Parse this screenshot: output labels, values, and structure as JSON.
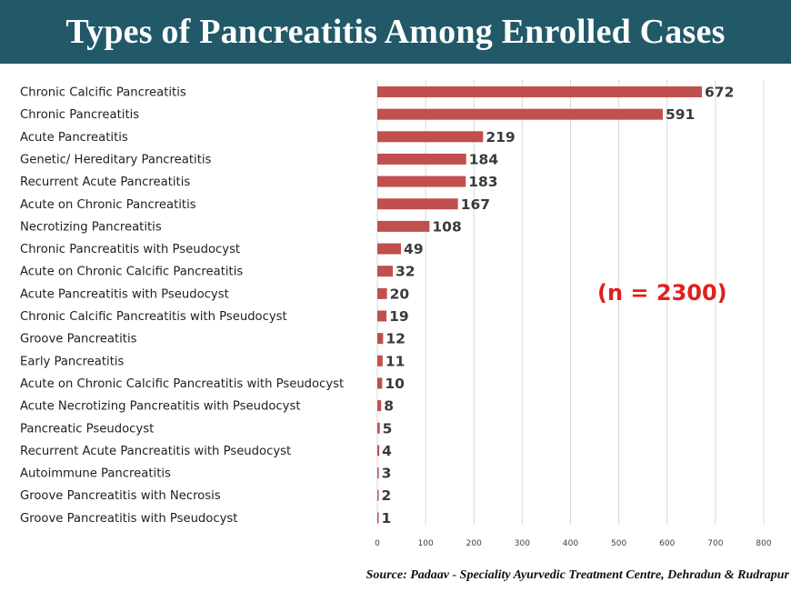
{
  "header": {
    "title": "Types of Pancreatitis Among Enrolled Cases"
  },
  "annotation": {
    "n_text": "(n = 2300)"
  },
  "footer": {
    "source": "Source: Padaav - Speciality Ayurvedic Treatment Centre, Dehradun & Rudrapur"
  },
  "colors": {
    "bar": "#c0504d",
    "title_bg": "#215968",
    "annotation": "#e02020"
  },
  "chart_data": {
    "type": "bar",
    "orientation": "horizontal",
    "title": "Types of Pancreatitis Among Enrolled Cases",
    "xlabel": "",
    "ylabel": "",
    "categories": [
      "Chronic Calcific Pancreatitis",
      "Chronic Pancreatitis",
      "Acute Pancreatitis",
      "Genetic/ Hereditary Pancreatitis",
      "Recurrent Acute Pancreatitis",
      "Acute on Chronic Pancreatitis",
      "Necrotizing Pancreatitis",
      "Chronic Pancreatitis with Pseudocyst",
      "Acute on Chronic Calcific Pancreatitis",
      "Acute Pancreatitis with Pseudocyst",
      "Chronic Calcific Pancreatitis with Pseudocyst",
      "Groove Pancreatitis",
      "Early Pancreatitis",
      "Acute on Chronic Calcific Pancreatitis with Pseudocyst",
      "Acute Necrotizing Pancreatitis with Pseudocyst",
      "Pancreatic Pseudocyst",
      "Recurrent Acute Pancreatitis with Pseudocyst",
      "Autoimmune Pancreatitis",
      "Groove Pancreatitis with Necrosis",
      "Groove Pancreatitis with Pseudocyst"
    ],
    "values": [
      672,
      591,
      219,
      184,
      183,
      167,
      108,
      49,
      32,
      20,
      19,
      12,
      11,
      10,
      8,
      5,
      4,
      3,
      2,
      1
    ],
    "xlim": [
      0,
      800
    ],
    "xticks": [
      "0",
      "100",
      "200",
      "300",
      "400",
      "500",
      "600",
      "700",
      "800"
    ],
    "grid": "vertical"
  }
}
